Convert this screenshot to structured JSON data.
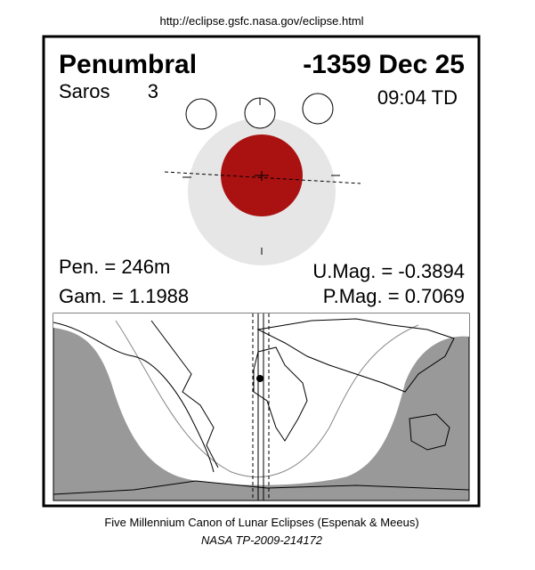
{
  "header": {
    "url": "http://eclipse.gsfc.nasa.gov/eclipse.html"
  },
  "eclipse": {
    "type": "Penumbral",
    "date": "-1359 Dec 25",
    "saros_label": "Saros",
    "saros": "3",
    "time": "09:04 TD",
    "pen": "Pen. = 246m",
    "gam": "Gam. = 1.1988",
    "umag": "U.Mag. = -0.3894",
    "pmag": "P.Mag. = 0.7069"
  },
  "footer": {
    "line1": "Five Millennium Canon of Lunar Eclipses (Espenak & Meeus)",
    "line2": "NASA TP-2009-214172"
  }
}
